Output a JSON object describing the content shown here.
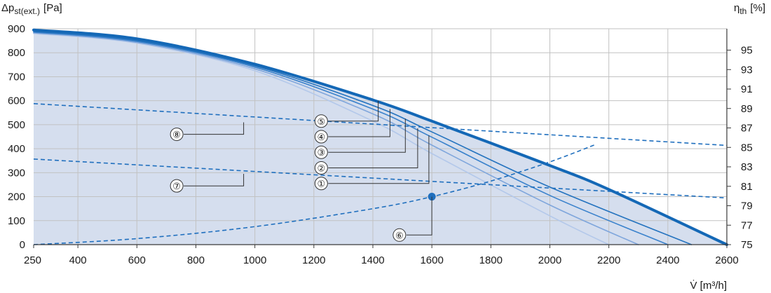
{
  "chart_data": {
    "type": "line",
    "y_axis_left": {
      "title_main": "Δp",
      "title_sub": "st(ext.)",
      "title_unit": "[Pa]",
      "range": [
        0,
        900
      ],
      "ticks": [
        0,
        100,
        200,
        300,
        400,
        500,
        600,
        700,
        800,
        900
      ],
      "tick_labels": [
        "0",
        "100",
        "200",
        "300",
        "400",
        "500",
        "600",
        "700",
        "800",
        "900"
      ]
    },
    "y_axis_right": {
      "title_main": "η",
      "title_sub": "th",
      "title_unit": "[%]",
      "range": [
        75,
        97.2
      ],
      "ticks": [
        75,
        77,
        79,
        81,
        83,
        85,
        87,
        89,
        91,
        93,
        95
      ],
      "tick_labels": [
        "75",
        "77",
        "79",
        "81",
        "83",
        "85",
        "87",
        "89",
        "91",
        "93",
        "95"
      ]
    },
    "x_axis": {
      "title": "V̇ [m³/h]",
      "range": [
        250,
        2600
      ],
      "ticks": [
        250,
        400,
        600,
        800,
        1000,
        1200,
        1400,
        1600,
        1800,
        2000,
        2200,
        2400,
        2600
      ],
      "tick_labels": [
        "250",
        "400",
        "600",
        "800",
        "1000",
        "1200",
        "1400",
        "1600",
        "1800",
        "2000",
        "2200",
        "2400",
        "2600"
      ]
    },
    "grid": true,
    "fan_curves": [
      {
        "label": "①",
        "color": "#b3c8ea",
        "width": 1.6,
        "x": [
          250,
          600,
          1000,
          1400,
          1600,
          2000,
          2200
        ],
        "y": [
          880,
          840,
          725,
          515,
          380,
          120,
          0
        ]
      },
      {
        "label": "②",
        "color": "#7fa6dc",
        "width": 1.6,
        "x": [
          250,
          600,
          1000,
          1400,
          1600,
          2000,
          2300
        ],
        "y": [
          883,
          843,
          733,
          545,
          415,
          165,
          0
        ]
      },
      {
        "label": "③",
        "color": "#3a82cc",
        "width": 1.6,
        "x": [
          250,
          600,
          1000,
          1400,
          1600,
          2000,
          2400
        ],
        "y": [
          886,
          847,
          740,
          565,
          448,
          205,
          0
        ]
      },
      {
        "label": "④",
        "color": "#2473bf",
        "width": 1.6,
        "x": [
          250,
          600,
          1000,
          1400,
          1600,
          2000,
          2480
        ],
        "y": [
          889,
          851,
          745,
          580,
          470,
          240,
          0
        ]
      },
      {
        "label": "⑤",
        "color": "#1666b2",
        "width": 1.6,
        "x": [
          250,
          600,
          1000,
          1400,
          1600,
          2000,
          2200,
          2600
        ],
        "y": [
          895,
          858,
          752,
          603,
          515,
          330,
          230,
          0
        ]
      }
    ],
    "envelope_index": 4,
    "efficiency_curves": [
      {
        "label": "⑦",
        "x": [
          250,
          2600
        ],
        "eta": [
          83.8,
          79.8
        ]
      },
      {
        "label": "⑧",
        "x": [
          250,
          2600
        ],
        "eta": [
          89.5,
          85.2
        ]
      }
    ],
    "system_curve": {
      "label": "⑥",
      "x": [
        250,
        600,
        1000,
        1400,
        1600,
        1800,
        2000,
        2150
      ],
      "y": [
        0,
        25,
        75,
        150,
        200,
        265,
        345,
        415
      ]
    },
    "operating_point": {
      "x": 1600,
      "y": 200
    },
    "callouts": [
      {
        "label": "⑤",
        "point": [
          1418,
          600
        ],
        "text_at": [
          1225,
          515
        ]
      },
      {
        "label": "④",
        "point": [
          1458,
          565
        ],
        "text_at": [
          1225,
          450
        ]
      },
      {
        "label": "③",
        "point": [
          1510,
          525
        ],
        "text_at": [
          1225,
          385
        ]
      },
      {
        "label": "②",
        "point": [
          1552,
          485
        ],
        "text_at": [
          1225,
          320
        ]
      },
      {
        "label": "①",
        "point": [
          1590,
          455
        ],
        "text_at": [
          1225,
          255
        ]
      },
      {
        "label": "⑧",
        "point": [
          962,
          510
        ],
        "text_at": [
          735,
          460
        ]
      },
      {
        "label": "⑦",
        "point": [
          962,
          295
        ],
        "text_at": [
          735,
          245
        ]
      },
      {
        "label": "⑥",
        "point": [
          1600,
          200
        ],
        "text_at": [
          1490,
          40
        ]
      }
    ],
    "colors": {
      "fill": "#d5deee",
      "grid": "#c2c2c2",
      "axis": "#3a3a3a",
      "dashed": "#1f6fbe",
      "point": "#1f6fbe"
    }
  }
}
